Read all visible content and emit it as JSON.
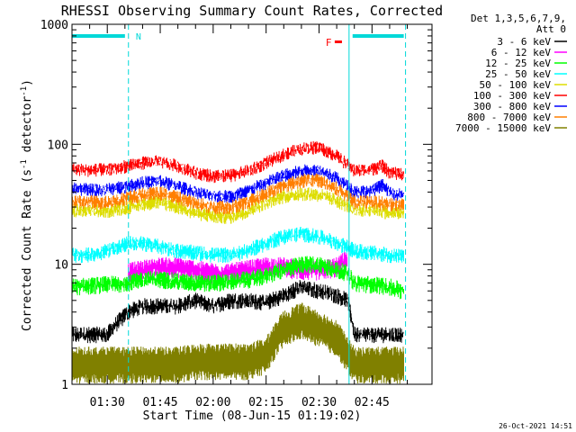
{
  "chart_data": {
    "type": "line",
    "title": "RHESSI Observing Summary Count Rates, Corrected",
    "xlabel": "Start Time (08-Jun-15 01:19:02)",
    "ylabel": "Corrected Count Rate (s⁻¹ detector⁻¹)",
    "ylabel_main": "Corrected Count Rate (s",
    "ylabel_sup1": "-1",
    "ylabel_mid": " detector",
    "ylabel_sup2": "-1",
    "ylabel_end": ")",
    "yscale": "log",
    "ylim": [
      1,
      1000
    ],
    "xlim_minutes": [
      80,
      182
    ],
    "x_ticks": [
      {
        "t": 90,
        "label": "01:30"
      },
      {
        "t": 105,
        "label": "01:45"
      },
      {
        "t": 120,
        "label": "02:00"
      },
      {
        "t": 135,
        "label": "02:15"
      },
      {
        "t": 150,
        "label": "02:30"
      },
      {
        "t": 165,
        "label": "02:45"
      }
    ],
    "y_ticks": [
      {
        "v": 1,
        "label": "1"
      },
      {
        "v": 10,
        "label": "10"
      },
      {
        "v": 100,
        "label": "100"
      },
      {
        "v": 1000,
        "label": "1000"
      }
    ],
    "legend_header": [
      "Det 1,3,5,6,7,9,",
      "Att 0"
    ],
    "timestamp": "26-Oct-2021 14:51",
    "night_markers": [
      {
        "t": 80,
        "kind": "edge"
      },
      {
        "t": 96,
        "kind": "dashed"
      },
      {
        "t": 158.5,
        "kind": "edge"
      },
      {
        "t": 174.5,
        "kind": "dashed"
      }
    ],
    "night_bars": [
      {
        "t0": 80,
        "t1": 95,
        "label": "N"
      },
      {
        "t0": 159.5,
        "t1": 174,
        "label": ""
      }
    ],
    "flare_marker": {
      "label": "F",
      "t": 157.5
    },
    "series": [
      {
        "name": "3 - 6 keV",
        "color": "#000000",
        "x": [
          80,
          90,
          96,
          100,
          105,
          110,
          115,
          120,
          125,
          130,
          135,
          140,
          145,
          150,
          155,
          158,
          160,
          165,
          170,
          174
        ],
        "y": [
          2.6,
          2.6,
          4.0,
          4.5,
          4.5,
          4.5,
          5.0,
          4.5,
          5.0,
          5.0,
          4.8,
          5.5,
          6.5,
          6.0,
          5.5,
          5.0,
          2.6,
          2.6,
          2.6,
          2.6
        ]
      },
      {
        "name": "6 - 12 keV",
        "color": "#ff00ff",
        "x": [
          96,
          100,
          105,
          110,
          115,
          120,
          125,
          130,
          135,
          140,
          145,
          150,
          155,
          158
        ],
        "y": [
          8.5,
          9.0,
          9.5,
          9.5,
          9.0,
          8.5,
          8.5,
          9.0,
          9.5,
          9.5,
          9.0,
          9.0,
          9.5,
          11.0
        ]
      },
      {
        "name": "12 - 25 keV",
        "color": "#00ff00",
        "x": [
          80,
          90,
          96,
          100,
          105,
          110,
          115,
          120,
          125,
          130,
          135,
          140,
          145,
          150,
          155,
          158,
          160,
          165,
          170,
          174
        ],
        "y": [
          6.5,
          6.8,
          7.0,
          7.5,
          7.5,
          7.2,
          7.0,
          7.0,
          7.2,
          7.5,
          8.0,
          9.0,
          10.0,
          10.0,
          9.0,
          8.5,
          7.0,
          6.8,
          6.5,
          6.0
        ]
      },
      {
        "name": "25 - 50 keV",
        "color": "#00ffff",
        "x": [
          80,
          85,
          90,
          96,
          100,
          105,
          110,
          115,
          120,
          125,
          130,
          135,
          140,
          145,
          150,
          155,
          158,
          160,
          165,
          170,
          174
        ],
        "y": [
          12,
          12,
          13,
          15,
          15,
          14,
          13,
          12.5,
          12,
          12,
          13,
          15,
          17,
          18,
          17,
          15,
          14,
          13,
          12.5,
          12,
          11.5
        ]
      },
      {
        "name": "50 - 100 keV",
        "color": "#dddd00",
        "x": [
          80,
          85,
          90,
          96,
          100,
          105,
          110,
          115,
          120,
          125,
          130,
          135,
          140,
          145,
          150,
          155,
          158,
          160,
          165,
          170,
          174
        ],
        "y": [
          28,
          28,
          28,
          30,
          32,
          33,
          30,
          27,
          25,
          25,
          28,
          33,
          37,
          39,
          38,
          34,
          31,
          28,
          29,
          27,
          27
        ]
      },
      {
        "name": "100 - 300 keV",
        "color": "#ff0000",
        "x": [
          80,
          85,
          90,
          96,
          100,
          105,
          110,
          115,
          120,
          125,
          130,
          135,
          140,
          145,
          150,
          155,
          158,
          160,
          165,
          168,
          170,
          174
        ],
        "y": [
          62,
          61,
          62,
          66,
          70,
          72,
          66,
          58,
          54,
          55,
          60,
          70,
          82,
          92,
          95,
          80,
          68,
          60,
          62,
          66,
          58,
          56
        ]
      },
      {
        "name": "300 - 800 keV",
        "color": "#0000ff",
        "x": [
          80,
          85,
          90,
          96,
          100,
          105,
          110,
          115,
          120,
          125,
          130,
          135,
          140,
          145,
          150,
          155,
          158,
          160,
          165,
          168,
          170,
          174
        ],
        "y": [
          43,
          42,
          42,
          45,
          48,
          49,
          45,
          40,
          37,
          37,
          41,
          48,
          55,
          60,
          61,
          52,
          45,
          40,
          41,
          46,
          39,
          38
        ]
      },
      {
        "name": "800 - 7000 keV",
        "color": "#ff7f00",
        "x": [
          80,
          85,
          90,
          96,
          100,
          105,
          110,
          115,
          120,
          125,
          130,
          135,
          140,
          145,
          150,
          155,
          158,
          160,
          165,
          170,
          174
        ],
        "y": [
          33,
          33,
          33,
          36,
          38,
          39,
          36,
          32,
          30,
          30,
          33,
          39,
          45,
          50,
          50,
          43,
          37,
          33,
          33,
          32,
          31
        ]
      },
      {
        "name": "7000 - 15000 keV",
        "color": "#808000",
        "x": [
          80,
          90,
          96,
          100,
          105,
          110,
          115,
          120,
          125,
          130,
          135,
          140,
          145,
          150,
          155,
          158,
          160,
          165,
          170,
          174
        ],
        "y": [
          1.5,
          1.5,
          1.5,
          1.5,
          1.5,
          1.5,
          1.6,
          1.6,
          1.6,
          1.6,
          1.8,
          3.0,
          3.5,
          3.0,
          2.5,
          1.8,
          1.5,
          1.5,
          1.5,
          1.5
        ]
      }
    ]
  }
}
